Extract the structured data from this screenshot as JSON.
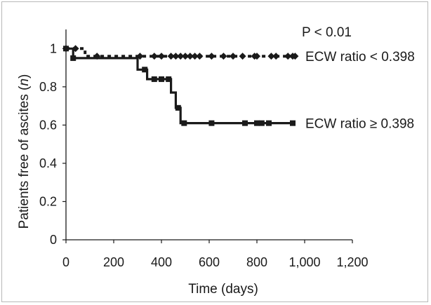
{
  "chart_data": {
    "type": "line",
    "subtype": "kaplan-meier step",
    "title": "",
    "xlabel": "Time (days)",
    "ylabel_prefix": "Patients free of ascites (",
    "ylabel_italic": "n",
    "ylabel_suffix": ")",
    "xlim": [
      0,
      1200
    ],
    "ylim": [
      0,
      1.1
    ],
    "x_ticks": [
      0,
      200,
      400,
      600,
      800,
      1000,
      1200
    ],
    "x_tick_labels": [
      "0",
      "200",
      "400",
      "600",
      "800",
      "1,000",
      "1,200"
    ],
    "y_ticks": [
      0,
      0.2,
      0.4,
      0.6,
      0.8,
      1
    ],
    "y_tick_labels": [
      "0",
      "0.2",
      "0.4",
      "0.6",
      "0.8",
      "1"
    ],
    "grid": false,
    "legend": "none",
    "annotation": "P < 0.01",
    "series": [
      {
        "name": "ECW ratio < 0.398",
        "style": "dotted",
        "color": "#1a1a1a",
        "steps": [
          [
            0,
            1.0
          ],
          [
            80,
            1.0
          ],
          [
            80,
            0.96
          ],
          [
            955,
            0.96
          ]
        ],
        "censor_x": [
          0,
          40,
          130,
          310,
          370,
          400,
          440,
          460,
          480,
          500,
          520,
          540,
          560,
          610,
          660,
          700,
          740,
          790,
          800,
          860,
          880,
          930,
          950,
          960
        ]
      },
      {
        "name": "ECW ratio ≥ 0.398",
        "style": "solid",
        "color": "#1a1a1a",
        "steps": [
          [
            0,
            1.0
          ],
          [
            30,
            1.0
          ],
          [
            30,
            0.95
          ],
          [
            300,
            0.95
          ],
          [
            300,
            0.89
          ],
          [
            340,
            0.89
          ],
          [
            340,
            0.84
          ],
          [
            440,
            0.84
          ],
          [
            440,
            0.77
          ],
          [
            460,
            0.77
          ],
          [
            460,
            0.69
          ],
          [
            480,
            0.69
          ],
          [
            480,
            0.61
          ],
          [
            955,
            0.61
          ]
        ],
        "censor_x": [
          0,
          30,
          330,
          370,
          400,
          430,
          470,
          495,
          610,
          750,
          800,
          820,
          850,
          950
        ]
      }
    ]
  }
}
